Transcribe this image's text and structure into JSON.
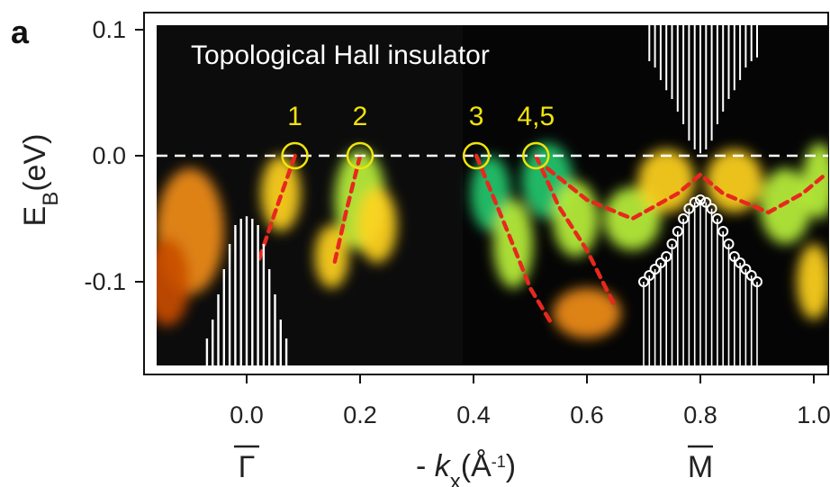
{
  "chart_data": {
    "type": "heatmap",
    "panel_label": "a",
    "title": "Topological Hall insulator",
    "xlabel": "- k_x(Å^-1)",
    "xlabel_parts": {
      "prefix": "- ",
      "var": "k",
      "sub": "x",
      "unit_open": "(Å",
      "sup": "-1",
      "unit_close": ")"
    },
    "ylabel": "E_B(eV)",
    "ylabel_parts": {
      "var": "E",
      "sub": "B",
      "unit": "(eV)"
    },
    "xlim": [
      -0.17,
      1.03
    ],
    "ylim": [
      -0.175,
      0.115
    ],
    "x_ticks": [
      0.0,
      0.2,
      0.4,
      0.6,
      0.8,
      1.0
    ],
    "x_tick_labels": [
      "0.0",
      "0.2",
      "0.4",
      "0.6",
      "0.8",
      "1.0"
    ],
    "y_ticks": [
      0.1,
      0.0,
      -0.1
    ],
    "y_tick_labels": [
      "0.1",
      "0.0",
      "-0.1"
    ],
    "symmetry_points": [
      {
        "label": "Γ",
        "x": 0.0
      },
      {
        "label": "M",
        "x": 0.8
      }
    ],
    "fermi_level": 0.0,
    "fermi_crossings": [
      {
        "label": "1",
        "x": 0.085,
        "y": 0.0
      },
      {
        "label": "2",
        "x": 0.2,
        "y": 0.0
      },
      {
        "label": "3",
        "x": 0.405,
        "y": 0.0
      },
      {
        "label": "4,5",
        "x": 0.51,
        "y": 0.0
      }
    ],
    "dispersion_guides": [
      {
        "points": [
          [
            0.085,
            0.0
          ],
          [
            0.05,
            -0.045
          ],
          [
            0.02,
            -0.085
          ]
        ]
      },
      {
        "points": [
          [
            0.2,
            0.0
          ],
          [
            0.175,
            -0.045
          ],
          [
            0.155,
            -0.085
          ]
        ]
      },
      {
        "points": [
          [
            0.405,
            0.0
          ],
          [
            0.46,
            -0.06
          ],
          [
            0.5,
            -0.105
          ],
          [
            0.54,
            -0.135
          ]
        ]
      },
      {
        "points": [
          [
            0.51,
            0.0
          ],
          [
            0.55,
            -0.04
          ],
          [
            0.6,
            -0.075
          ],
          [
            0.65,
            -0.12
          ]
        ]
      },
      {
        "points": [
          [
            0.53,
            -0.01
          ],
          [
            0.6,
            -0.035
          ],
          [
            0.68,
            -0.05
          ],
          [
            0.76,
            -0.03
          ],
          [
            0.8,
            -0.015
          ],
          [
            0.84,
            -0.03
          ],
          [
            0.92,
            -0.045
          ],
          [
            0.98,
            -0.03
          ],
          [
            1.02,
            -0.015
          ]
        ]
      }
    ],
    "intensity_spots": [
      {
        "x": 0.06,
        "y": -0.03,
        "rx": 0.035,
        "ry": 0.03,
        "level": 0.6
      },
      {
        "x": -0.1,
        "y": -0.06,
        "rx": 0.06,
        "ry": 0.05,
        "level": 0.55
      },
      {
        "x": -0.14,
        "y": -0.1,
        "rx": 0.04,
        "ry": 0.035,
        "level": 0.4
      },
      {
        "x": 0.2,
        "y": -0.035,
        "rx": 0.045,
        "ry": 0.04,
        "level": 0.85
      },
      {
        "x": 0.23,
        "y": -0.055,
        "rx": 0.035,
        "ry": 0.03,
        "level": 0.7
      },
      {
        "x": 0.15,
        "y": -0.08,
        "rx": 0.03,
        "ry": 0.025,
        "level": 0.6
      },
      {
        "x": 0.43,
        "y": -0.03,
        "rx": 0.035,
        "ry": 0.03,
        "level": 0.95
      },
      {
        "x": 0.47,
        "y": -0.07,
        "rx": 0.035,
        "ry": 0.035,
        "level": 0.9
      },
      {
        "x": 0.53,
        "y": -0.02,
        "rx": 0.045,
        "ry": 0.03,
        "level": 0.95
      },
      {
        "x": 0.58,
        "y": -0.05,
        "rx": 0.04,
        "ry": 0.03,
        "level": 0.85
      },
      {
        "x": 0.68,
        "y": -0.05,
        "rx": 0.05,
        "ry": 0.025,
        "level": 0.8
      },
      {
        "x": 0.74,
        "y": -0.02,
        "rx": 0.05,
        "ry": 0.025,
        "level": 0.7
      },
      {
        "x": 0.86,
        "y": -0.02,
        "rx": 0.05,
        "ry": 0.025,
        "level": 0.7
      },
      {
        "x": 0.95,
        "y": -0.04,
        "rx": 0.045,
        "ry": 0.03,
        "level": 0.9
      },
      {
        "x": 1.01,
        "y": -0.02,
        "rx": 0.03,
        "ry": 0.03,
        "level": 0.75
      },
      {
        "x": 0.6,
        "y": -0.125,
        "rx": 0.06,
        "ry": 0.02,
        "level": 0.5
      },
      {
        "x": 1.0,
        "y": -0.1,
        "rx": 0.03,
        "ry": 0.03,
        "level": 0.6
      }
    ],
    "stick_spectrum_gamma": {
      "x": [
        -0.07,
        -0.06,
        -0.05,
        -0.04,
        -0.03,
        -0.02,
        -0.01,
        0.0,
        0.01,
        0.02,
        0.03,
        0.04,
        0.05,
        0.06,
        0.07
      ],
      "top": [
        -0.145,
        -0.13,
        -0.11,
        -0.09,
        -0.07,
        -0.055,
        -0.05,
        -0.048,
        -0.05,
        -0.055,
        -0.07,
        -0.09,
        -0.11,
        -0.13,
        -0.145
      ]
    },
    "stick_spectrum_m_top": {
      "x": [
        0.71,
        0.72,
        0.73,
        0.74,
        0.75,
        0.76,
        0.77,
        0.78,
        0.79,
        0.8,
        0.81,
        0.82,
        0.83,
        0.84,
        0.85,
        0.86,
        0.87,
        0.88,
        0.89,
        0.9
      ],
      "bottom": [
        0.075,
        0.07,
        0.06,
        0.052,
        0.045,
        0.035,
        0.025,
        0.012,
        0.005,
        0.002,
        0.005,
        0.012,
        0.025,
        0.035,
        0.045,
        0.052,
        0.06,
        0.07,
        0.075,
        0.078
      ]
    },
    "circles_m": {
      "x": [
        0.7,
        0.71,
        0.72,
        0.73,
        0.74,
        0.75,
        0.76,
        0.77,
        0.78,
        0.79,
        0.8,
        0.81,
        0.82,
        0.83,
        0.84,
        0.85,
        0.86,
        0.87,
        0.88,
        0.89,
        0.9
      ],
      "y": [
        -0.1,
        -0.095,
        -0.09,
        -0.085,
        -0.08,
        -0.07,
        -0.06,
        -0.05,
        -0.042,
        -0.037,
        -0.035,
        -0.037,
        -0.042,
        -0.05,
        -0.06,
        -0.07,
        -0.08,
        -0.085,
        -0.09,
        -0.095,
        -0.1
      ]
    },
    "colormap": [
      "#000000",
      "#5a1a00",
      "#c84d00",
      "#f08c1a",
      "#ffd21e",
      "#b8f03a",
      "#25c86e"
    ]
  }
}
